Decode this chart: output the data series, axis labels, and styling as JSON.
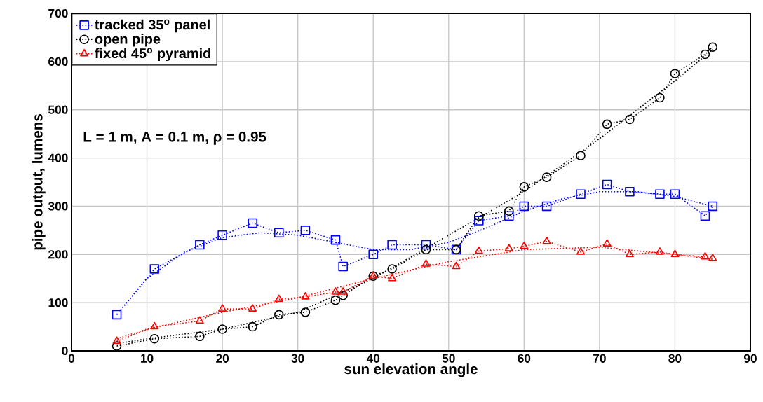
{
  "chart_data": {
    "type": "line",
    "xlabel": "sun elevation angle",
    "ylabel": "pipe output, lumens",
    "annotations": [
      "L = 1 m, A = 0.1 m, ρ = 0.95"
    ],
    "xlim": [
      0,
      90
    ],
    "xticks": [
      0,
      10,
      20,
      30,
      40,
      50,
      60,
      70,
      80,
      90
    ],
    "ylim": [
      0,
      700
    ],
    "yticks": [
      0,
      100,
      200,
      300,
      400,
      500,
      600,
      700
    ],
    "grid": true,
    "legend": "top left",
    "line_style": "dotted",
    "x": [
      6,
      11,
      17,
      20,
      24,
      27.5,
      31,
      35,
      36,
      40,
      42.5,
      47,
      51,
      54,
      58,
      60,
      63,
      67.5,
      71,
      74,
      78,
      80,
      84,
      85
    ],
    "series": [
      {
        "name": "tracked 35$^{o}$ panel",
        "color": "#0000ff",
        "marker": "square",
        "values": [
          75,
          170,
          220,
          240,
          265,
          245,
          250,
          230,
          175,
          200,
          220,
          220,
          210,
          270,
          280,
          300,
          300,
          325,
          345,
          330,
          325,
          325,
          280,
          300
        ]
      },
      {
        "name": "open pipe",
        "color": "#000000",
        "marker": "circle",
        "values": [
          10,
          25,
          30,
          45,
          50,
          75,
          80,
          105,
          115,
          155,
          170,
          210,
          210,
          280,
          290,
          340,
          360,
          405,
          470,
          480,
          525,
          575,
          615,
          630
        ]
      },
      {
        "name": "fixed 45$^{o}$ pyramid",
        "color": "#ff0000",
        "marker": "triangle",
        "values": [
          20,
          50,
          62,
          87,
          87,
          107,
          112,
          122,
          122,
          155,
          150,
          180,
          175,
          207,
          212,
          217,
          227,
          205,
          222,
          200,
          205,
          200,
          195,
          192
        ]
      },
      {
        "type": "line",
        "color": "#0000ff",
        "marker": "none",
        "x": [
          6,
          10,
          15,
          20,
          25,
          30,
          35,
          40,
          45,
          50,
          55,
          60,
          65,
          70,
          75,
          80,
          85
        ],
        "values": [
          75,
          150,
          205,
          235,
          245,
          240,
          225,
          210,
          210,
          225,
          255,
          290,
          315,
          330,
          330,
          320,
          300
        ]
      },
      {
        "type": "line",
        "color": "#000000",
        "marker": "none",
        "x": [
          6,
          10,
          20,
          30,
          40,
          50,
          60,
          70,
          80,
          85
        ],
        "values": [
          15,
          25,
          45,
          80,
          150,
          240,
          330,
          440,
          560,
          625
        ]
      },
      {
        "type": "line",
        "color": "#ff0000",
        "marker": "none",
        "x": [
          6,
          10,
          20,
          30,
          40,
          50,
          60,
          70,
          80,
          85
        ],
        "values": [
          25,
          45,
          80,
          110,
          150,
          185,
          210,
          215,
          200,
          190
        ]
      }
    ]
  }
}
